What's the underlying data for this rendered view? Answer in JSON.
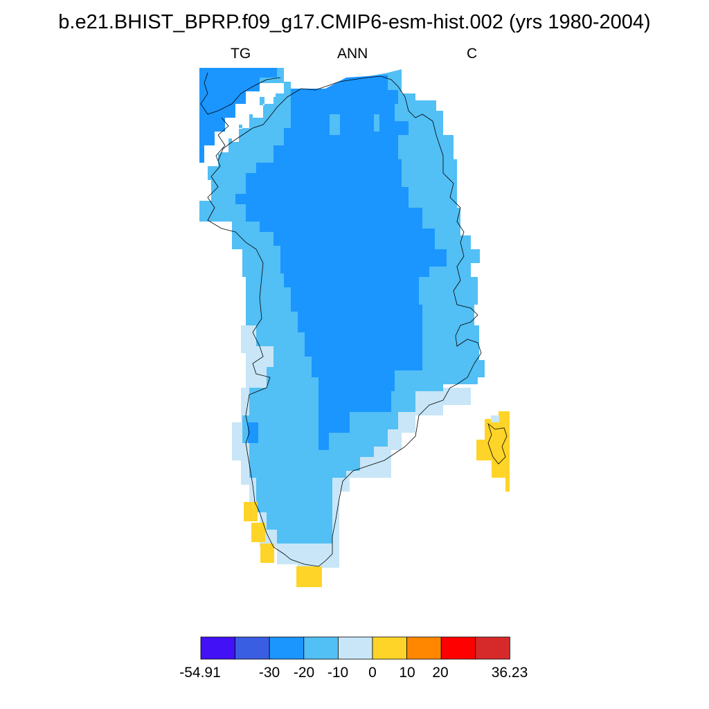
{
  "title": "b.e21.BHIST_BPRP.f09_g17.CMIP6-esm-hist.002 (yrs 1980-2004)",
  "subtitles": {
    "left": "TG",
    "center": "ANN",
    "right": "C"
  },
  "colorbar": {
    "labels": [
      "-54.91",
      "-30",
      "-20",
      "-10",
      "0",
      "10",
      "20",
      "36.23"
    ],
    "colors": [
      "#4311f5",
      "#3a5ee1",
      "#1b96ff",
      "#52bff5",
      "#c8e6f7",
      "#ffd428",
      "#ff8700",
      "#ff0000",
      "#d62a2a"
    ]
  },
  "map_colors": {
    "deep": "#1b96ff",
    "mid": "#52bff5",
    "light": "#c8e6f7",
    "warm": "#ffd428",
    "coast": "#000000"
  }
}
